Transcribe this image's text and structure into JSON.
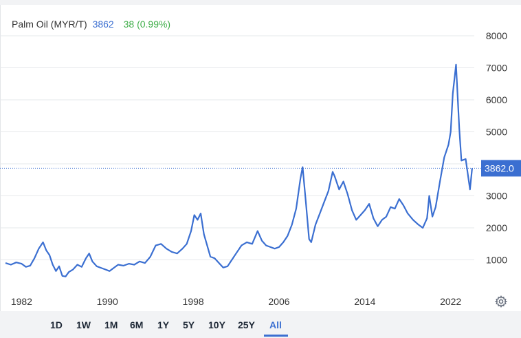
{
  "header": {
    "name": "Palm Oil (MYR/T)",
    "price": "3862",
    "change": "38 (0.99%)"
  },
  "colors": {
    "line": "#3b6fd1",
    "positive": "#3fae49",
    "grid": "#e6e8eb",
    "axis_text": "#333333"
  },
  "range_buttons": [
    "1D",
    "1W",
    "1M",
    "6M",
    "1Y",
    "5Y",
    "10Y",
    "25Y",
    "All"
  ],
  "active_range": "All",
  "settings_icon": "gear-icon",
  "chart_data": {
    "type": "line",
    "title": "",
    "xlabel": "",
    "ylabel": "",
    "xlim": [
      1980.5,
      2024.2
    ],
    "ylim": [
      0,
      9000
    ],
    "x_ticks": [
      "1982",
      "1990",
      "1998",
      "2006",
      "2014",
      "2022"
    ],
    "y_ticks": [
      "1000",
      "2000",
      "3000",
      "4000",
      "5000",
      "6000",
      "7000",
      "8000"
    ],
    "y_axis_side": "right",
    "grid": "horizontal",
    "last_value_label": "3862.0",
    "last_value": 3862,
    "series": [
      {
        "x": [
          1980.5,
          1981.0,
          1981.5,
          1982.0,
          1982.4,
          1982.8,
          1983.2,
          1983.6,
          1984.0,
          1984.3,
          1984.6,
          1984.9,
          1985.2,
          1985.5,
          1985.8,
          1986.1,
          1986.4,
          1986.8,
          1987.2,
          1987.6,
          1988.0,
          1988.3,
          1988.6,
          1989.0,
          1989.4,
          1989.8,
          1990.2,
          1990.6,
          1991.0,
          1991.5,
          1992.0,
          1992.5,
          1993.0,
          1993.5,
          1994.0,
          1994.5,
          1995.0,
          1995.5,
          1996.0,
          1996.5,
          1997.0,
          1997.4,
          1997.8,
          1998.1,
          1998.4,
          1998.7,
          1999.0,
          1999.3,
          1999.6,
          2000.0,
          2000.4,
          2000.8,
          2001.2,
          2001.6,
          2002.0,
          2002.5,
          2003.0,
          2003.5,
          2004.0,
          2004.4,
          2004.8,
          2005.2,
          2005.6,
          2006.0,
          2006.4,
          2006.8,
          2007.2,
          2007.6,
          2008.0,
          2008.2,
          2008.5,
          2008.8,
          2009.0,
          2009.4,
          2009.8,
          2010.2,
          2010.6,
          2011.0,
          2011.2,
          2011.6,
          2012.0,
          2012.4,
          2012.8,
          2013.2,
          2013.6,
          2014.0,
          2014.4,
          2014.8,
          2015.2,
          2015.6,
          2016.0,
          2016.4,
          2016.8,
          2017.2,
          2017.6,
          2018.0,
          2018.5,
          2019.0,
          2019.4,
          2019.8,
          2020.0,
          2020.3,
          2020.6,
          2021.0,
          2021.4,
          2021.8,
          2022.0,
          2022.2,
          2022.5,
          2022.8,
          2023.0,
          2023.4,
          2023.8,
          2024.0
        ],
        "y": [
          900,
          850,
          920,
          880,
          780,
          820,
          1050,
          1350,
          1550,
          1300,
          1150,
          850,
          650,
          800,
          500,
          480,
          620,
          700,
          850,
          780,
          1050,
          1200,
          950,
          800,
          750,
          700,
          650,
          750,
          850,
          820,
          880,
          850,
          950,
          900,
          1100,
          1450,
          1500,
          1350,
          1250,
          1200,
          1350,
          1500,
          1900,
          2400,
          2250,
          2450,
          1800,
          1450,
          1100,
          1050,
          900,
          760,
          800,
          1000,
          1200,
          1450,
          1550,
          1500,
          1900,
          1600,
          1450,
          1400,
          1350,
          1400,
          1550,
          1750,
          2100,
          2600,
          3550,
          3900,
          2800,
          1650,
          1550,
          2100,
          2450,
          2800,
          3150,
          3750,
          3600,
          3200,
          3450,
          3050,
          2550,
          2250,
          2400,
          2550,
          2750,
          2300,
          2050,
          2250,
          2350,
          2650,
          2600,
          2900,
          2700,
          2450,
          2250,
          2100,
          2000,
          2300,
          3000,
          2350,
          2650,
          3450,
          4200,
          4600,
          5000,
          6200,
          7100,
          5100,
          4100,
          4150,
          3200,
          3862
        ]
      }
    ]
  }
}
